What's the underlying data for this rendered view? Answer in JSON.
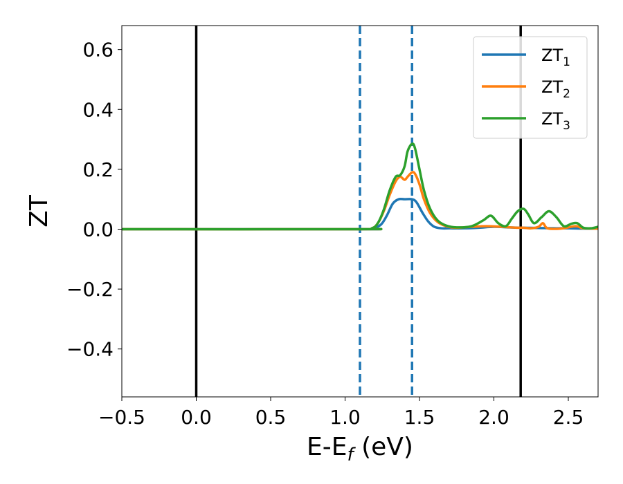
{
  "chart_data": {
    "type": "line",
    "xlabel": "E-E",
    "xlabel_sub": "f",
    "xlabel_unit": " (eV)",
    "ylabel": "ZT",
    "xlim": [
      -0.5,
      2.7
    ],
    "ylim": [
      -0.56,
      0.68
    ],
    "xticks": [
      -0.5,
      0.0,
      0.5,
      1.0,
      1.5,
      2.0,
      2.5
    ],
    "xtick_labels": [
      "−0.5",
      "0.0",
      "0.5",
      "1.0",
      "1.5",
      "2.0",
      "2.5"
    ],
    "yticks": [
      -0.4,
      -0.2,
      0.0,
      0.2,
      0.4,
      0.6
    ],
    "ytick_labels": [
      "−0.4",
      "−0.2",
      "0.0",
      "0.2",
      "0.4",
      "0.6"
    ],
    "grid": false,
    "legend_position": "top-right",
    "vlines_solid": [
      0.0,
      2.18
    ],
    "vlines_dashed": [
      1.1,
      1.45
    ],
    "vline_solid_color": "#000000",
    "vline_dashed_color": "#1f77b4",
    "series": [
      {
        "name": "ZT",
        "name_sub": "1",
        "color": "#1f77b4",
        "x": [
          -0.5,
          1.1,
          1.18,
          1.24,
          1.28,
          1.32,
          1.36,
          1.4,
          1.45,
          1.48,
          1.52,
          1.56,
          1.6,
          1.65,
          1.7,
          1.8,
          1.9,
          2.0,
          2.1,
          2.18,
          2.3,
          2.4,
          2.5,
          2.6,
          2.7
        ],
        "y": [
          0.0,
          0.0,
          0.002,
          0.015,
          0.045,
          0.085,
          0.1,
          0.1,
          0.1,
          0.09,
          0.055,
          0.025,
          0.008,
          0.003,
          0.003,
          0.003,
          0.005,
          0.008,
          0.006,
          0.005,
          0.004,
          0.003,
          0.003,
          0.002,
          0.002
        ]
      },
      {
        "name": "ZT",
        "name_sub": "2",
        "color": "#ff7f0e",
        "x": [
          -0.5,
          1.1,
          1.18,
          1.22,
          1.26,
          1.3,
          1.34,
          1.37,
          1.4,
          1.42,
          1.45,
          1.47,
          1.5,
          1.53,
          1.57,
          1.62,
          1.68,
          1.75,
          1.85,
          1.95,
          2.05,
          2.15,
          2.2,
          2.25,
          2.3,
          2.33,
          2.36,
          2.45,
          2.55,
          2.6,
          2.7
        ],
        "y": [
          0.0,
          0.0,
          0.003,
          0.02,
          0.06,
          0.115,
          0.16,
          0.175,
          0.165,
          0.175,
          0.19,
          0.185,
          0.15,
          0.1,
          0.055,
          0.025,
          0.01,
          0.005,
          0.008,
          0.01,
          0.008,
          0.005,
          0.005,
          0.003,
          0.008,
          0.02,
          0.003,
          0.002,
          0.01,
          0.003,
          0.002
        ]
      },
      {
        "name": "ZT",
        "name_sub": "3",
        "color": "#2ca02c",
        "x": [
          -0.5,
          1.1,
          1.18,
          1.22,
          1.26,
          1.3,
          1.34,
          1.37,
          1.4,
          1.42,
          1.45,
          1.47,
          1.5,
          1.53,
          1.57,
          1.62,
          1.68,
          1.75,
          1.85,
          1.93,
          1.98,
          2.03,
          2.08,
          2.12,
          2.16,
          2.2,
          2.23,
          2.27,
          2.32,
          2.37,
          2.42,
          2.47,
          2.52,
          2.56,
          2.6,
          2.65,
          2.7
        ],
        "y": [
          0.0,
          0.0,
          0.003,
          0.02,
          0.065,
          0.13,
          0.175,
          0.18,
          0.21,
          0.26,
          0.285,
          0.27,
          0.2,
          0.13,
          0.07,
          0.03,
          0.012,
          0.006,
          0.01,
          0.03,
          0.045,
          0.02,
          0.01,
          0.035,
          0.06,
          0.068,
          0.05,
          0.02,
          0.04,
          0.06,
          0.04,
          0.01,
          0.018,
          0.02,
          0.005,
          0.003,
          0.008
        ]
      }
    ]
  }
}
